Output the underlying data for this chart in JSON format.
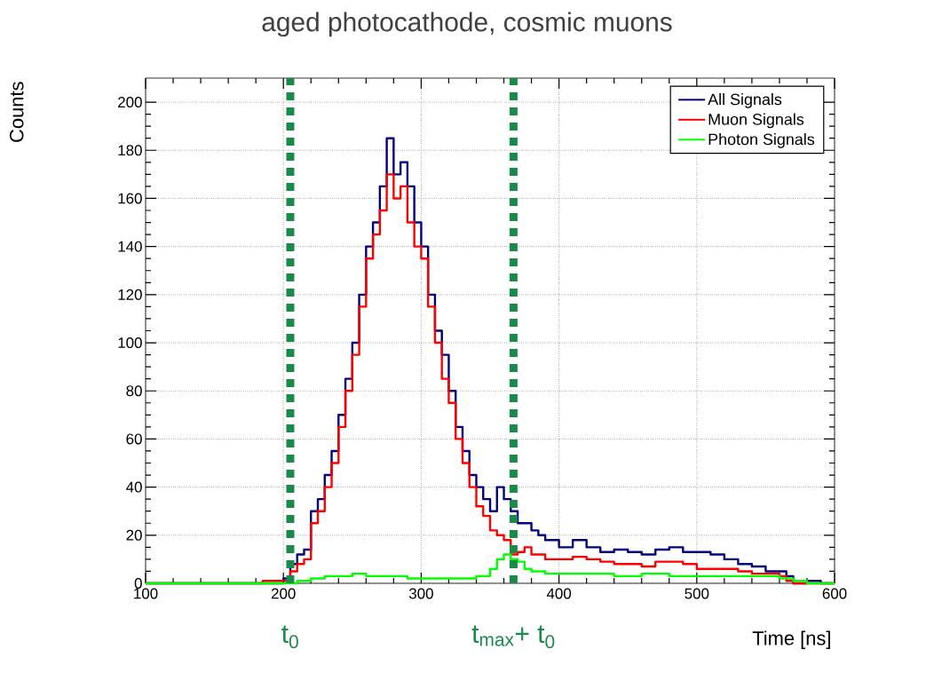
{
  "chart_data": {
    "type": "step",
    "title": "aged photocathode, cosmic muons",
    "xlabel": "Time [ns]",
    "ylabel": "Counts",
    "xlim": [
      100,
      600
    ],
    "xticks": [
      100,
      200,
      300,
      400,
      500,
      600
    ],
    "ylim": [
      0,
      210
    ],
    "yticks": [
      0,
      20,
      40,
      60,
      80,
      100,
      120,
      140,
      160,
      180,
      200
    ],
    "grid": true,
    "legend": "top right",
    "series": [
      {
        "name": "All Signals",
        "color": "#000080",
        "x": [
          100,
          190,
          200,
          205,
          210,
          215,
          220,
          225,
          230,
          235,
          240,
          245,
          250,
          255,
          260,
          265,
          270,
          275,
          280,
          285,
          290,
          295,
          300,
          305,
          310,
          315,
          320,
          325,
          330,
          335,
          340,
          345,
          350,
          355,
          360,
          365,
          370,
          375,
          380,
          385,
          390,
          400,
          410,
          420,
          430,
          440,
          450,
          460,
          470,
          480,
          490,
          500,
          510,
          520,
          530,
          540,
          550,
          560,
          565,
          570,
          580,
          590,
          600
        ],
        "values": [
          0,
          0,
          2,
          8,
          12,
          14,
          30,
          35,
          45,
          55,
          70,
          85,
          100,
          120,
          140,
          150,
          165,
          185,
          170,
          175,
          165,
          150,
          140,
          120,
          105,
          95,
          80,
          65,
          55,
          45,
          40,
          35,
          30,
          40,
          35,
          30,
          25,
          25,
          22,
          20,
          18,
          15,
          18,
          15,
          13,
          14,
          13,
          12,
          14,
          15,
          13,
          13,
          12,
          10,
          8,
          7,
          5,
          5,
          3,
          0,
          1,
          0,
          0
        ]
      },
      {
        "name": "Muon Signals",
        "color": "#ff0000",
        "x": [
          100,
          185,
          195,
          200,
          205,
          210,
          215,
          220,
          225,
          230,
          235,
          240,
          245,
          250,
          255,
          260,
          265,
          270,
          275,
          280,
          285,
          290,
          295,
          300,
          305,
          310,
          315,
          320,
          325,
          330,
          335,
          340,
          345,
          350,
          355,
          360,
          365,
          370,
          375,
          380,
          390,
          400,
          410,
          420,
          430,
          440,
          450,
          460,
          470,
          480,
          490,
          500,
          510,
          520,
          530,
          540,
          550,
          560,
          565,
          570,
          600
        ],
        "values": [
          0,
          1,
          1,
          1,
          5,
          8,
          10,
          25,
          30,
          40,
          50,
          65,
          80,
          95,
          115,
          135,
          145,
          155,
          170,
          160,
          165,
          150,
          140,
          135,
          115,
          100,
          85,
          75,
          60,
          50,
          40,
          32,
          28,
          22,
          20,
          18,
          12,
          13,
          15,
          12,
          10,
          10,
          11,
          10,
          9,
          8,
          8,
          7,
          9,
          9,
          8,
          6,
          6,
          6,
          5,
          4,
          4,
          3,
          1,
          0,
          0
        ]
      },
      {
        "name": "Photon Signals",
        "color": "#00ff00",
        "x": [
          100,
          200,
          210,
          220,
          230,
          240,
          250,
          260,
          270,
          280,
          290,
          300,
          310,
          320,
          330,
          340,
          350,
          355,
          360,
          365,
          370,
          375,
          380,
          390,
          400,
          420,
          440,
          460,
          480,
          500,
          520,
          540,
          560,
          570,
          580,
          600
        ],
        "values": [
          0,
          0,
          1,
          2,
          3,
          3,
          4,
          3,
          3,
          3,
          2,
          2,
          2,
          2,
          2,
          3,
          6,
          10,
          12,
          10,
          9,
          6,
          5,
          4,
          4,
          4,
          3,
          4,
          3,
          3,
          3,
          3,
          2,
          1,
          0,
          0
        ]
      }
    ],
    "ref_lines": [
      {
        "axis": "x",
        "value": 205,
        "label": "t$_{0}$",
        "color": "#1a8a4a",
        "line_style": "dashed"
      },
      {
        "axis": "x",
        "value": 367,
        "label": "t$_{max}$+ t$_{0}$",
        "color": "#1a8a4a",
        "line_style": "dashed"
      }
    ]
  }
}
